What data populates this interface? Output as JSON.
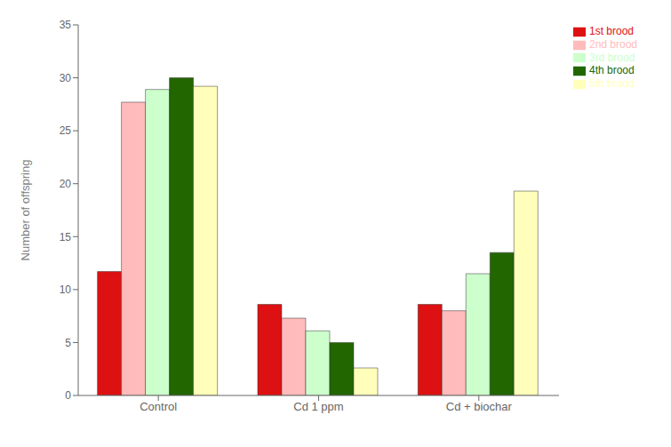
{
  "chart_data": {
    "type": "bar",
    "categories": [
      "Control",
      "Cd 1 ppm",
      "Cd + biochar"
    ],
    "series": [
      {
        "name": "1st brood",
        "color": "#dd1111",
        "values": [
          11.7,
          8.6,
          8.6
        ]
      },
      {
        "name": "2nd brood",
        "color": "#ffbbbb",
        "values": [
          27.7,
          7.3,
          8.0
        ]
      },
      {
        "name": "3rd brood",
        "color": "#ccffcc",
        "values": [
          28.9,
          6.1,
          11.5
        ]
      },
      {
        "name": "4th brood",
        "color": "#226600",
        "values": [
          30.0,
          5.0,
          13.5
        ]
      },
      {
        "name": "5th brood",
        "color": "#ffffbb",
        "values": [
          29.2,
          2.6,
          19.3
        ]
      }
    ],
    "ylabel": "Number of offspring",
    "ylim": [
      0,
      35
    ],
    "yticks": [
      0,
      5,
      10,
      15,
      20,
      25,
      30,
      35
    ],
    "grid": false,
    "legend": "upper right"
  }
}
